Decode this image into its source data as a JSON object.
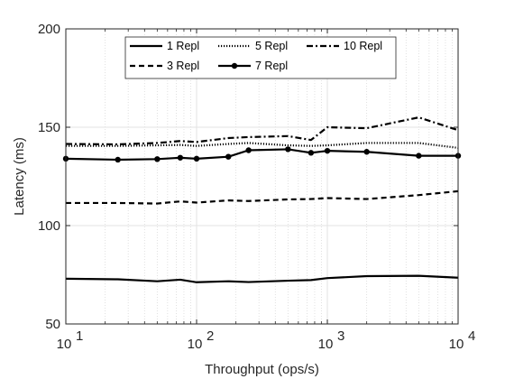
{
  "chart_data": {
    "type": "line",
    "xlabel": "Throughput (ops/s)",
    "ylabel": "Latency (ms)",
    "xscale": "log",
    "xlim": [
      10,
      10000
    ],
    "ylim": [
      50,
      200
    ],
    "grid": true,
    "legend_placement": "top-center",
    "xticks": [
      {
        "value": 10,
        "base": "10",
        "exp": "1"
      },
      {
        "value": 100,
        "base": "10",
        "exp": "2"
      },
      {
        "value": 1000,
        "base": "10",
        "exp": "3"
      },
      {
        "value": 10000,
        "base": "10",
        "exp": "4"
      }
    ],
    "yticks": [
      {
        "value": 50,
        "label": "50"
      },
      {
        "value": 100,
        "label": "100"
      },
      {
        "value": 150,
        "label": "150"
      },
      {
        "value": 200,
        "label": "200"
      }
    ],
    "series": [
      {
        "name": "1 Repl",
        "style": "solid",
        "marker": false,
        "color": "#000000",
        "x": [
          10,
          25,
          50,
          75,
          100,
          175,
          250,
          500,
          750,
          1000,
          2000,
          5000,
          10000
        ],
        "y": [
          73,
          72.7,
          71.7,
          72.5,
          71.2,
          71.7,
          71.3,
          72,
          72.3,
          73.3,
          74.3,
          74.5,
          73.5
        ]
      },
      {
        "name": "3 Repl",
        "style": "dashed",
        "marker": false,
        "color": "#000000",
        "x": [
          10,
          25,
          50,
          75,
          100,
          175,
          250,
          500,
          750,
          1000,
          2000,
          5000,
          10000
        ],
        "y": [
          111.5,
          111.5,
          111.2,
          112.3,
          111.7,
          112.8,
          112.5,
          113.3,
          113.5,
          114,
          113.5,
          115.5,
          117.5
        ]
      },
      {
        "name": "5 Repl",
        "style": "dotted",
        "marker": false,
        "color": "#000000",
        "x": [
          10,
          25,
          50,
          75,
          100,
          175,
          250,
          500,
          750,
          1000,
          2000,
          5000,
          10000
        ],
        "y": [
          140.5,
          140.5,
          140.8,
          141,
          140.5,
          141.5,
          142,
          140.8,
          140.5,
          140.8,
          142,
          142,
          139.5
        ]
      },
      {
        "name": "7 Repl",
        "style": "solid",
        "marker": true,
        "color": "#000000",
        "x": [
          10,
          25,
          50,
          75,
          100,
          175,
          250,
          500,
          750,
          1000,
          2000,
          5000,
          10000
        ],
        "y": [
          134,
          133.5,
          133.8,
          134.5,
          134,
          135,
          138.3,
          138.8,
          137,
          138,
          137.5,
          135.5,
          135.5
        ]
      },
      {
        "name": "10 Repl",
        "style": "dashdot",
        "marker": false,
        "color": "#000000",
        "x": [
          10,
          25,
          50,
          75,
          100,
          175,
          250,
          500,
          750,
          1000,
          2000,
          5000,
          10000
        ],
        "y": [
          141.5,
          141.3,
          142,
          143,
          142.5,
          144.5,
          145,
          145.5,
          143.5,
          150,
          149.5,
          155,
          148.5
        ]
      }
    ]
  }
}
